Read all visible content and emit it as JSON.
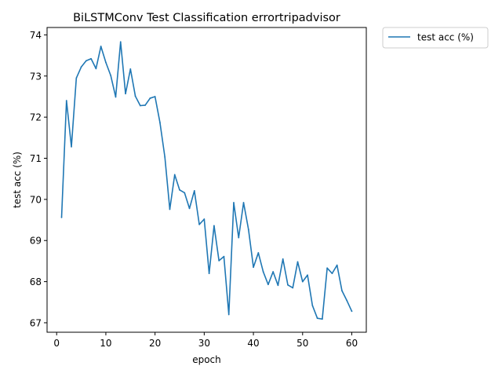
{
  "chart_data": {
    "type": "line",
    "title": "BiLSTMConv Test Classification errortripadvisor",
    "xlabel": "epoch",
    "ylabel": "test acc (%)",
    "xlim": [
      -1.95,
      62.95
    ],
    "ylim": [
      66.77,
      74.18
    ],
    "xticks": [
      0,
      10,
      20,
      30,
      40,
      50,
      60
    ],
    "yticks": [
      67,
      68,
      69,
      70,
      71,
      72,
      73,
      74
    ],
    "grid": false,
    "legend_position": "outside-top-right",
    "series": [
      {
        "name": "test acc (%)",
        "color": "#1f77b4",
        "x": [
          1,
          2,
          3,
          4,
          5,
          6,
          7,
          8,
          9,
          10,
          11,
          12,
          13,
          14,
          15,
          16,
          17,
          18,
          19,
          20,
          21,
          22,
          23,
          24,
          25,
          26,
          27,
          28,
          29,
          30,
          31,
          32,
          33,
          34,
          35,
          36,
          37,
          38,
          39,
          40,
          41,
          42,
          43,
          44,
          45,
          46,
          47,
          48,
          49,
          50,
          51,
          52,
          53,
          54,
          55,
          56,
          57,
          58,
          59,
          60
        ],
        "values": [
          69.56,
          72.4,
          71.28,
          72.95,
          73.22,
          73.37,
          73.42,
          73.18,
          73.72,
          73.33,
          73.01,
          72.49,
          73.83,
          72.57,
          73.17,
          72.51,
          72.28,
          72.29,
          72.46,
          72.5,
          71.87,
          71.03,
          69.76,
          70.6,
          70.23,
          70.16,
          69.78,
          70.21,
          69.39,
          69.52,
          68.2,
          69.36,
          68.51,
          68.61,
          67.2,
          69.92,
          69.07,
          69.92,
          69.27,
          68.35,
          68.7,
          68.24,
          67.93,
          68.24,
          67.91,
          68.55,
          67.92,
          67.85,
          68.48,
          68.0,
          68.16,
          67.42,
          67.11,
          67.09,
          68.33,
          68.2,
          68.4,
          67.78,
          67.54,
          67.28
        ]
      }
    ]
  }
}
